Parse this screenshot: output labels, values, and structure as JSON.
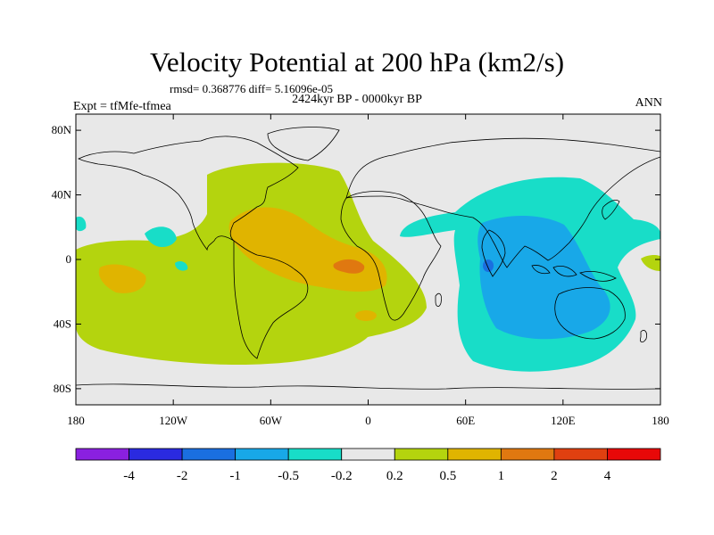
{
  "title": "Velocity Potential at 200 hPa (km2/s)",
  "stats": "rmsd= 0.368776 diff= 5.16096e-05",
  "period": "2424kyr BP - 0000kyr BP",
  "experiment": "Expt = tfMfe-tfmea",
  "season": "ANN",
  "map": {
    "lat_ticks": [
      "80N",
      "40N",
      "0",
      "40S",
      "80S"
    ],
    "lat_values": [
      80,
      40,
      0,
      -40,
      -80
    ],
    "lon_ticks": [
      "180",
      "120W",
      "60W",
      "0",
      "60E",
      "120E",
      "180"
    ],
    "lon_values": [
      -180,
      -120,
      -60,
      0,
      60,
      120,
      180
    ],
    "lat_range": [
      -90,
      90
    ],
    "lon_range": [
      -180,
      180
    ]
  },
  "colorbar": {
    "labels": [
      "-4",
      "-2",
      "-1",
      "-0.5",
      "-0.2",
      "0.2",
      "0.5",
      "1",
      "2",
      "4"
    ],
    "colors": [
      "#8a20e0",
      "#2a2ae0",
      "#1a6fe0",
      "#18a8e8",
      "#18ddc8",
      "#e8e8e8",
      "#b4d40e",
      "#e0b400",
      "#e07810",
      "#e04010",
      "#e80808"
    ]
  },
  "colors": {
    "background": "#e8e8e8",
    "positive_low": "#b4d40e",
    "positive_mid": "#e0b400",
    "positive_high": "#e07810",
    "negative_low": "#18ddc8",
    "negative_mid": "#18a8e8",
    "negative_high": "#1a6fe0"
  }
}
